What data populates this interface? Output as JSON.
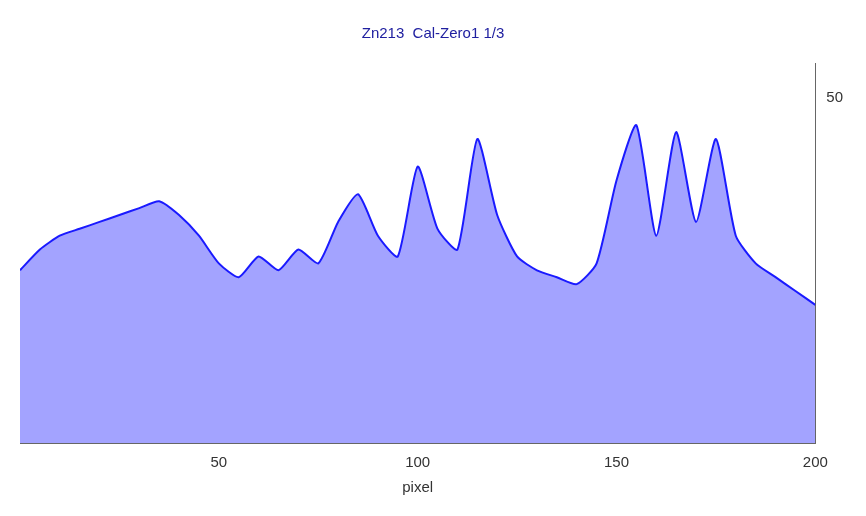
{
  "chart_data": {
    "type": "line",
    "title": "Zn213  Cal-Zero1 1/3",
    "x_label": "pixel",
    "x": [
      0,
      5,
      10,
      15,
      20,
      25,
      30,
      35,
      40,
      45,
      50,
      55,
      60,
      65,
      70,
      75,
      80,
      85,
      90,
      95,
      100,
      105,
      110,
      115,
      120,
      125,
      130,
      135,
      140,
      145,
      150,
      155,
      160,
      165,
      170,
      175,
      180,
      185,
      190,
      195,
      200
    ],
    "values": [
      25,
      28,
      30,
      31,
      32,
      33,
      34,
      35,
      33,
      30,
      26,
      24,
      27,
      25,
      28,
      26,
      32,
      36,
      30,
      27,
      40,
      31,
      28,
      44,
      33,
      27,
      25,
      24,
      23,
      26,
      38,
      46,
      30,
      45,
      32,
      44,
      30,
      26,
      24,
      22,
      20
    ],
    "color": "#1a1aff",
    "xlim": [
      0,
      200
    ],
    "xticks": [
      50,
      100,
      150,
      200
    ],
    "ylim": [
      0,
      55
    ],
    "yticks": [
      50
    ],
    "grid": false
  }
}
